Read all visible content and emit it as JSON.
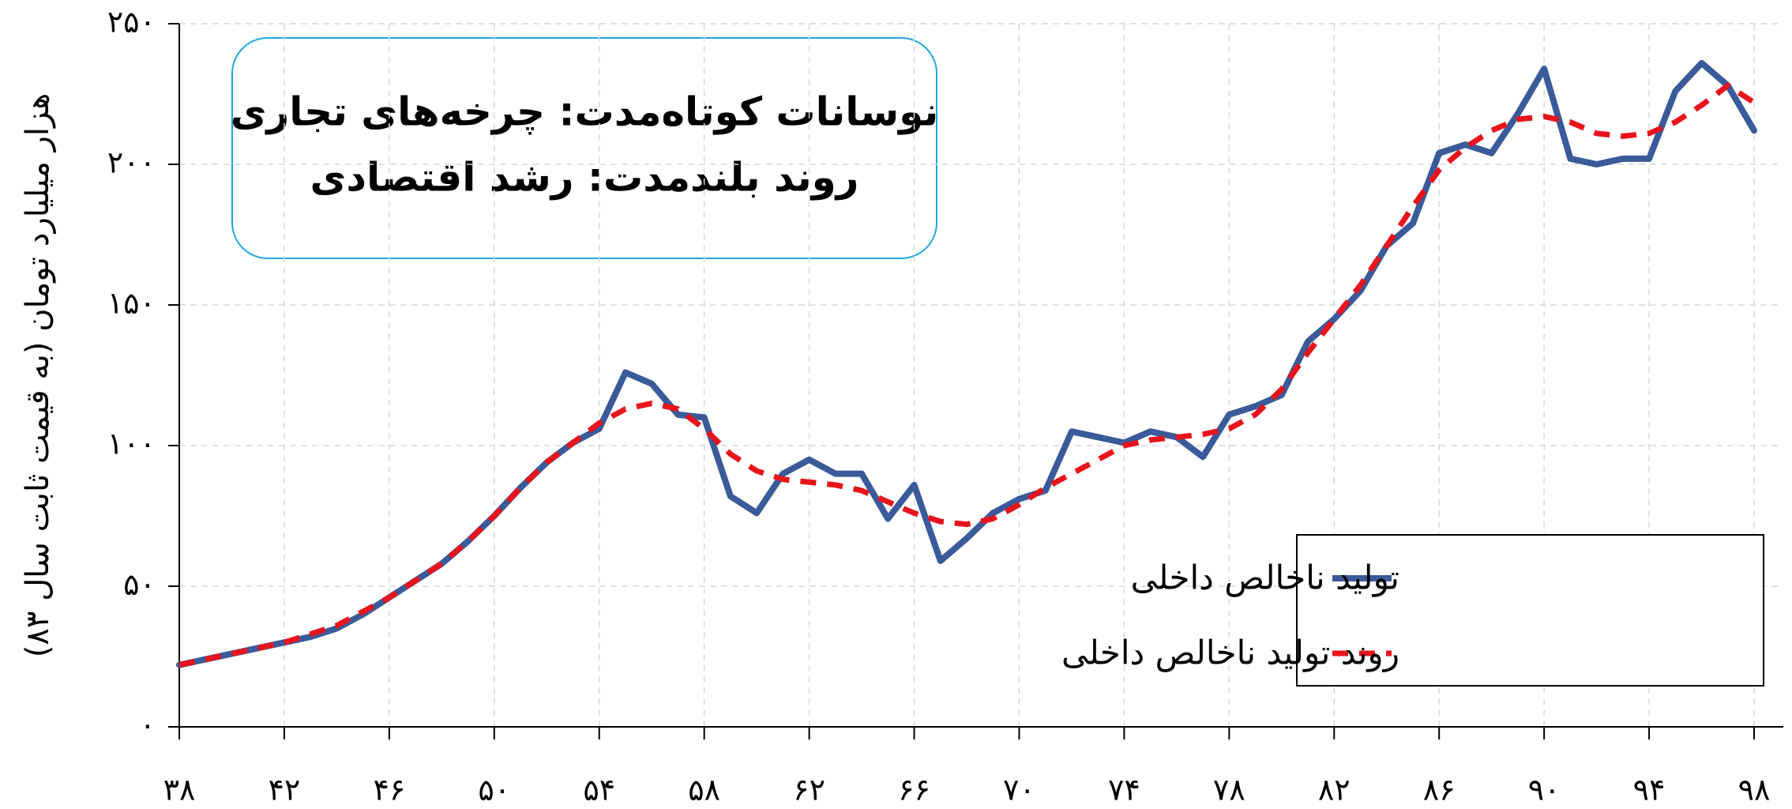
{
  "chart_data": {
    "type": "line",
    "annotations": [
      "نوسانات کوتاه‌مدت: چرخه‌های تجاری",
      "روند بلندمدت: رشد اقتصادی"
    ],
    "y_label": "هزار میلیارد تومان (به قیمت ثابت سال ۸۳)",
    "x": [
      38,
      39,
      40,
      41,
      42,
      43,
      44,
      45,
      46,
      47,
      48,
      49,
      50,
      51,
      52,
      53,
      54,
      55,
      56,
      57,
      58,
      59,
      60,
      61,
      62,
      63,
      64,
      65,
      66,
      67,
      68,
      69,
      70,
      71,
      72,
      73,
      74,
      75,
      76,
      77,
      78,
      79,
      80,
      81,
      82,
      83,
      84,
      85,
      86,
      87,
      88,
      89,
      90,
      91,
      92,
      93,
      94,
      95,
      96,
      97,
      98
    ],
    "series": [
      {
        "name": "تولید ناخالص داخلی",
        "color": "#3a5a99",
        "dash": false,
        "values": [
          22,
          24,
          26,
          28,
          30,
          32,
          35,
          40,
          46,
          52,
          58,
          66,
          75,
          85,
          94,
          101,
          106,
          126,
          122,
          111,
          110,
          82,
          76,
          90,
          95,
          90,
          90,
          74,
          86,
          59,
          67,
          76,
          81,
          84,
          105,
          103,
          101,
          105,
          103,
          96,
          111,
          114,
          118,
          137,
          145,
          155,
          171,
          179,
          204,
          207,
          204,
          218,
          234,
          202,
          200,
          202,
          202,
          226,
          236,
          228,
          212
        ]
      },
      {
        "name": "روند تولید ناخالص داخلی",
        "color": "#e8141c",
        "dash": true,
        "values": [
          22,
          24,
          26,
          28,
          30,
          33,
          36,
          41,
          46,
          52,
          58,
          66,
          75,
          85,
          94,
          101,
          108,
          113,
          115,
          113,
          106,
          97,
          91,
          88,
          87,
          86,
          84,
          80,
          76,
          73,
          72,
          74,
          79,
          85,
          90,
          95,
          100,
          102,
          103,
          104,
          106,
          111,
          120,
          133,
          145,
          157,
          171,
          185,
          198,
          206,
          212,
          216,
          217,
          215,
          211,
          210,
          211,
          215,
          221,
          228,
          222
        ]
      }
    ],
    "xlim": [
      38,
      98
    ],
    "xticks": [
      {
        "value": 38,
        "label": "۳۸"
      },
      {
        "value": 42,
        "label": "۴۲"
      },
      {
        "value": 46,
        "label": "۴۶"
      },
      {
        "value": 50,
        "label": "۵۰"
      },
      {
        "value": 54,
        "label": "۵۴"
      },
      {
        "value": 58,
        "label": "۵۸"
      },
      {
        "value": 62,
        "label": "۶۲"
      },
      {
        "value": 66,
        "label": "۶۶"
      },
      {
        "value": 70,
        "label": "۷۰"
      },
      {
        "value": 74,
        "label": "۷۴"
      },
      {
        "value": 78,
        "label": "۷۸"
      },
      {
        "value": 82,
        "label": "۸۲"
      },
      {
        "value": 86,
        "label": "۸۶"
      },
      {
        "value": 90,
        "label": "۹۰"
      },
      {
        "value": 94,
        "label": "۹۴"
      },
      {
        "value": 98,
        "label": "۹۸"
      }
    ],
    "ylim": [
      0,
      250
    ],
    "yticks": [
      {
        "value": 0,
        "label": "۰"
      },
      {
        "value": 50,
        "label": "۵۰"
      },
      {
        "value": 100,
        "label": "۱۰۰"
      },
      {
        "value": 150,
        "label": "۱۵۰"
      },
      {
        "value": 200,
        "label": "۲۰۰"
      },
      {
        "value": 250,
        "label": "۲۵۰"
      }
    ],
    "grid": true,
    "legend": "lower right"
  }
}
